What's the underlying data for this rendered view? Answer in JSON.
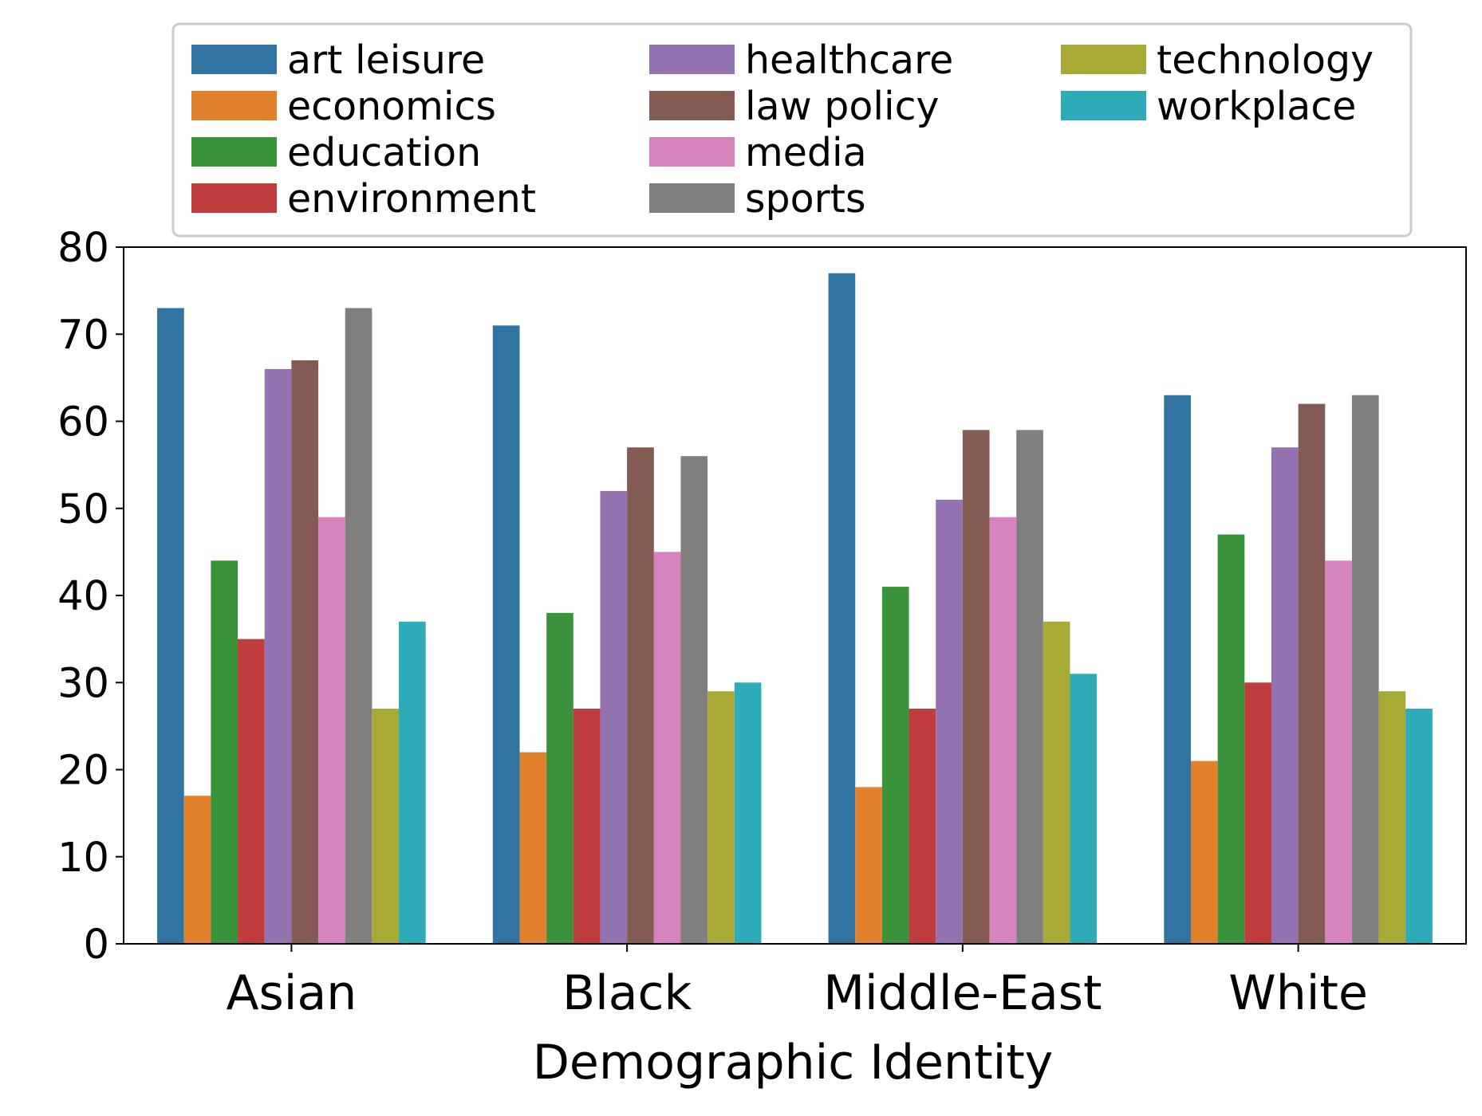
{
  "chart_data": {
    "type": "bar",
    "title": "",
    "xlabel": "Demographic Identity",
    "ylabel": "",
    "ylim": [
      0,
      80
    ],
    "yticks": [
      0,
      10,
      20,
      30,
      40,
      50,
      60,
      70,
      80
    ],
    "categories": [
      "Asian",
      "Black",
      "Middle-East",
      "White"
    ],
    "legend_position": "top",
    "series": [
      {
        "name": "art leisure",
        "color": "#3274a1",
        "values": [
          73,
          71,
          77,
          63
        ]
      },
      {
        "name": "economics",
        "color": "#e1812c",
        "values": [
          17,
          22,
          18,
          21
        ]
      },
      {
        "name": "education",
        "color": "#3a923a",
        "values": [
          44,
          38,
          41,
          47
        ]
      },
      {
        "name": "environment",
        "color": "#c03d3e",
        "values": [
          35,
          27,
          27,
          30
        ]
      },
      {
        "name": "healthcare",
        "color": "#9372b2",
        "values": [
          66,
          52,
          51,
          57
        ]
      },
      {
        "name": "law policy",
        "color": "#845b53",
        "values": [
          67,
          57,
          59,
          62
        ]
      },
      {
        "name": "media",
        "color": "#d684bd",
        "values": [
          49,
          45,
          49,
          44
        ]
      },
      {
        "name": "sports",
        "color": "#7f7f7f",
        "values": [
          73,
          56,
          59,
          63
        ]
      },
      {
        "name": "technology",
        "color": "#a9aa35",
        "values": [
          27,
          29,
          37,
          29
        ]
      },
      {
        "name": "workplace",
        "color": "#2eabb8",
        "values": [
          37,
          30,
          31,
          27
        ]
      }
    ]
  }
}
